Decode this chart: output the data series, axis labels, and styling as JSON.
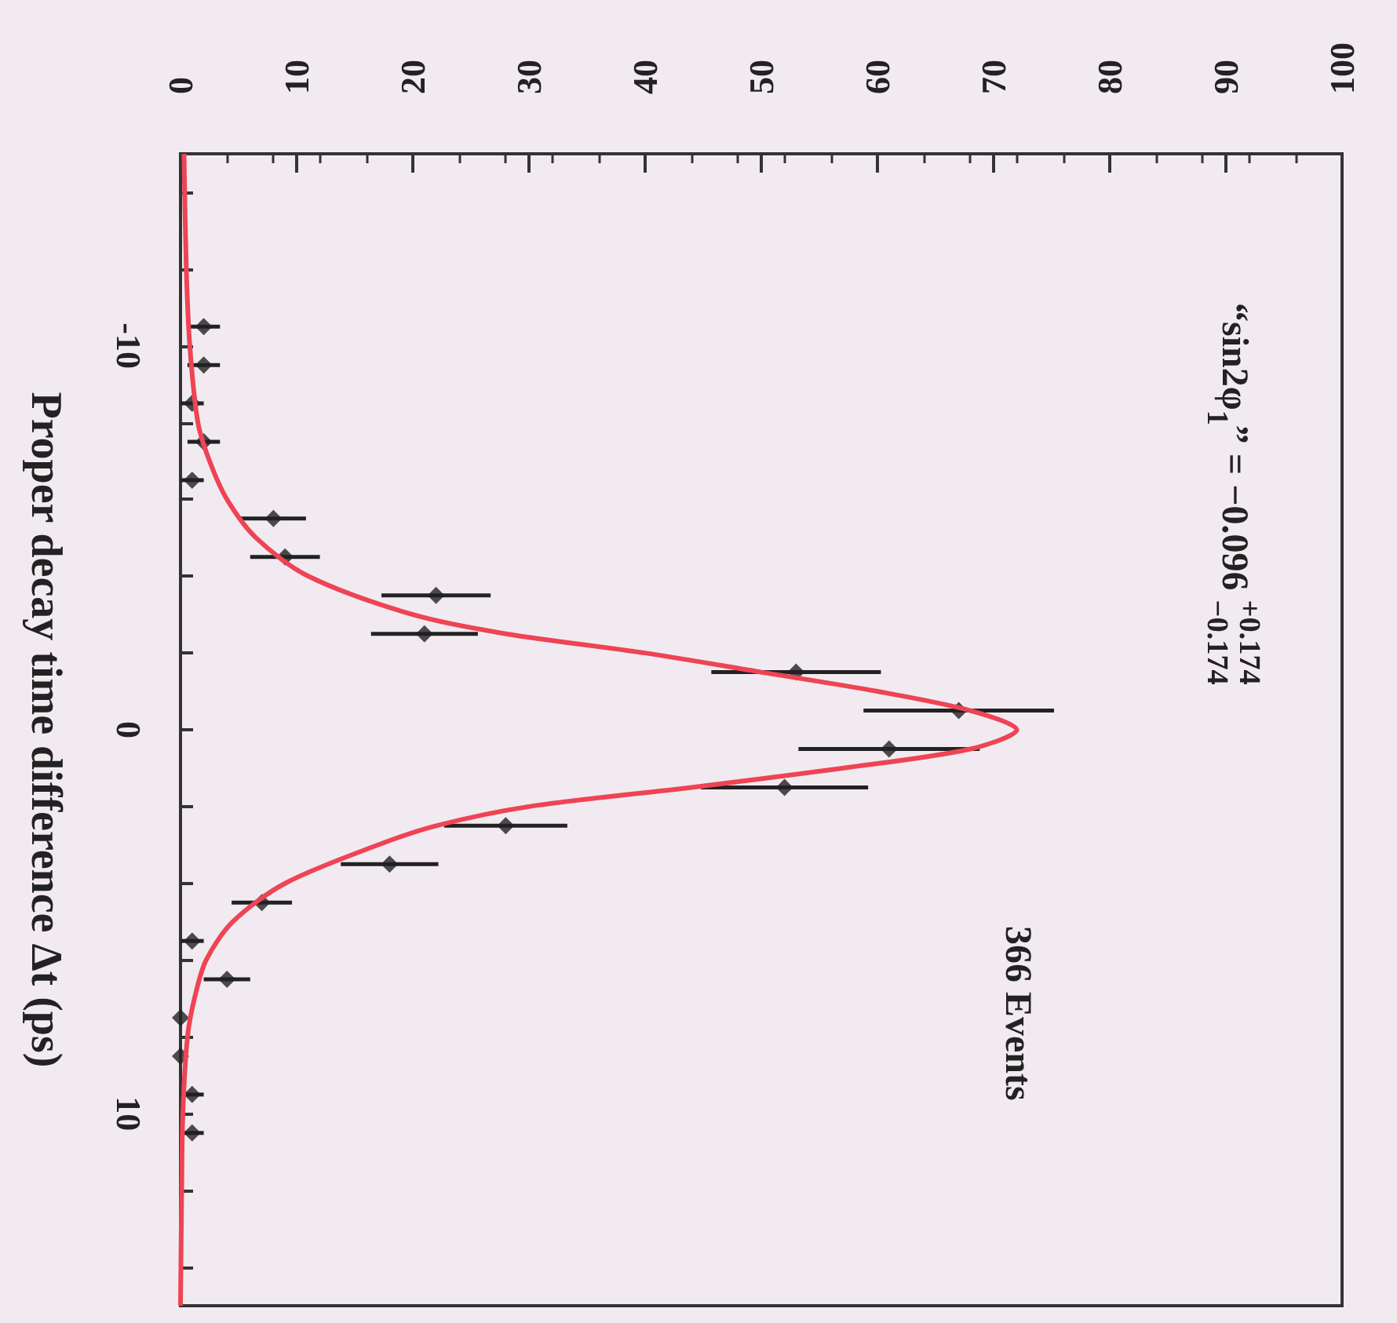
{
  "chart_data": {
    "type": "scatter",
    "ylabel": "Proper decay time difference Δt (ps)",
    "annotations": [
      "“sin2φ$_{1}$” = −0.096 $^{+0.174}$$_{−0.174}$",
      "366 Events"
    ],
    "ylim": [
      15,
      -15
    ],
    "yticks": [
      {
        "value": -14,
        "label": null
      },
      {
        "value": -12,
        "label": null
      },
      {
        "value": -10,
        "label": "-10"
      },
      {
        "value": -8,
        "label": null
      },
      {
        "value": -6,
        "label": null
      },
      {
        "value": -4,
        "label": null
      },
      {
        "value": -2,
        "label": null
      },
      0,
      {
        "value": 2,
        "label": null
      },
      {
        "value": 4,
        "label": null
      },
      {
        "value": 6,
        "label": null
      },
      {
        "value": 8,
        "label": null
      },
      10,
      {
        "value": 12,
        "label": null
      },
      {
        "value": 14,
        "label": null
      }
    ],
    "xlim": [
      0,
      100
    ],
    "xticks": [
      0,
      10,
      20,
      30,
      40,
      50,
      60,
      70,
      80,
      90,
      100
    ],
    "grid": false,
    "series": [
      {
        "type": "scatter",
        "color": "#222222",
        "marker": "diamond",
        "values": [
          -10.5,
          -9.5,
          -8.5,
          -7.5,
          -6.5,
          -5.5,
          -4.5,
          -3.5,
          -2.5,
          -1.5,
          -0.5,
          0.5,
          1.5,
          2.5,
          3.5,
          4.5,
          5.5,
          6.5,
          7.5,
          8.5,
          9.5,
          10.5
        ],
        "x": [
          2,
          2,
          1,
          2,
          1,
          8,
          9,
          22,
          21,
          53,
          67,
          61,
          52,
          28,
          18,
          7,
          1,
          4,
          0,
          0,
          1,
          1
        ],
        "xerrors": [
          1.4,
          1.4,
          1,
          1.4,
          1,
          2.8,
          3,
          4.7,
          4.6,
          7.3,
          8.2,
          7.8,
          7.2,
          5.3,
          4.2,
          2.6,
          1,
          2,
          null,
          null,
          1,
          1
        ]
      },
      {
        "type": "line",
        "color": "#ee4455",
        "marker": "none",
        "values": [
          -15,
          -12,
          -10,
          -8,
          -7,
          -6,
          -5,
          -4,
          -3,
          -2.5,
          -2,
          -1.5,
          -1,
          -0.5,
          0,
          0.5,
          1,
          1.5,
          2,
          2.5,
          3,
          4,
          5,
          6,
          7,
          8,
          10,
          12,
          15
        ],
        "x": [
          0.3,
          0.5,
          0.8,
          1.5,
          2.5,
          4,
          6.5,
          11,
          20,
          28,
          40,
          50,
          60,
          68,
          72,
          68,
          57,
          44,
          30,
          22,
          17,
          9,
          4.5,
          2.2,
          1.2,
          0.6,
          0.2,
          0.1,
          0
        ]
      }
    ]
  }
}
